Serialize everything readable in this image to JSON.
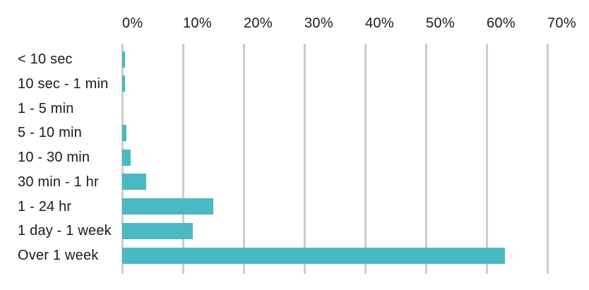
{
  "chart_data": {
    "type": "bar",
    "orientation": "horizontal",
    "title": "",
    "categories": [
      "< 10 sec",
      "10 sec - 1 min",
      "1 - 5 min",
      "5 - 10 min",
      "10 - 30 min",
      "30 min - 1 hr",
      "1 - 24 hr",
      "1 day - 1 week",
      "Over 1 week"
    ],
    "values": [
      0.5,
      0.5,
      0,
      0.7,
      1.4,
      4,
      15,
      11.6,
      63
    ],
    "unit": "%",
    "x_ticks": [
      "0%",
      "10%",
      "20%",
      "30%",
      "40%",
      "50%",
      "60%",
      "70%"
    ],
    "x_tick_values": [
      0,
      10,
      20,
      30,
      40,
      50,
      60,
      70
    ],
    "xlim": [
      0,
      70
    ],
    "xlabel": "",
    "ylabel": "",
    "axis_position": "top",
    "grid": "vertical",
    "legend": "none",
    "colors": {
      "bar": "#4ab9c2",
      "gridline": "#cccccc",
      "text": "#1b1b1b",
      "background": "#ffffff"
    }
  }
}
